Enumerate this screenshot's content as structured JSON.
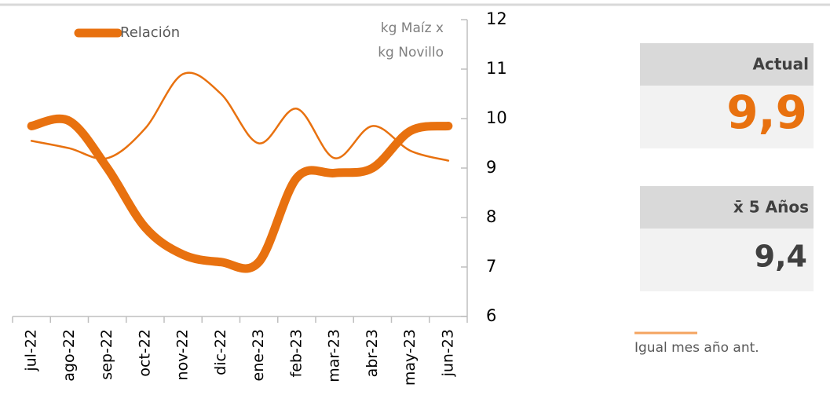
{
  "chart_data": {
    "type": "line",
    "categories": [
      "jul-22",
      "ago-22",
      "sep-22",
      "oct-22",
      "nov-22",
      "dic-22",
      "ene-23",
      "feb-23",
      "mar-23",
      "abr-23",
      "may-23",
      "jun-23"
    ],
    "series": [
      {
        "name": "Relación",
        "color": "#e8710f",
        "width": 11,
        "values": [
          9.85,
          9.95,
          9.0,
          7.8,
          7.25,
          7.1,
          7.1,
          8.8,
          8.9,
          9.0,
          9.75,
          9.85
        ]
      },
      {
        "name": "Igual mes año ant.",
        "color": "#e8710f",
        "width": 2.5,
        "values": [
          9.55,
          9.4,
          9.2,
          9.8,
          10.9,
          10.5,
          9.5,
          10.2,
          9.2,
          9.85,
          9.35,
          9.15
        ]
      }
    ],
    "y_label": [
      "kg Maíz x",
      "kg Novillo"
    ],
    "ylim": [
      6,
      12
    ],
    "yticks": [
      6,
      7,
      8,
      9,
      10,
      11,
      12
    ],
    "grid": false
  },
  "cards": [
    {
      "title": "Actual",
      "value": "9,9",
      "color": "#e8710f"
    },
    {
      "title": "x̄ 5 Años",
      "value": "9,4",
      "color": "#404040"
    }
  ]
}
